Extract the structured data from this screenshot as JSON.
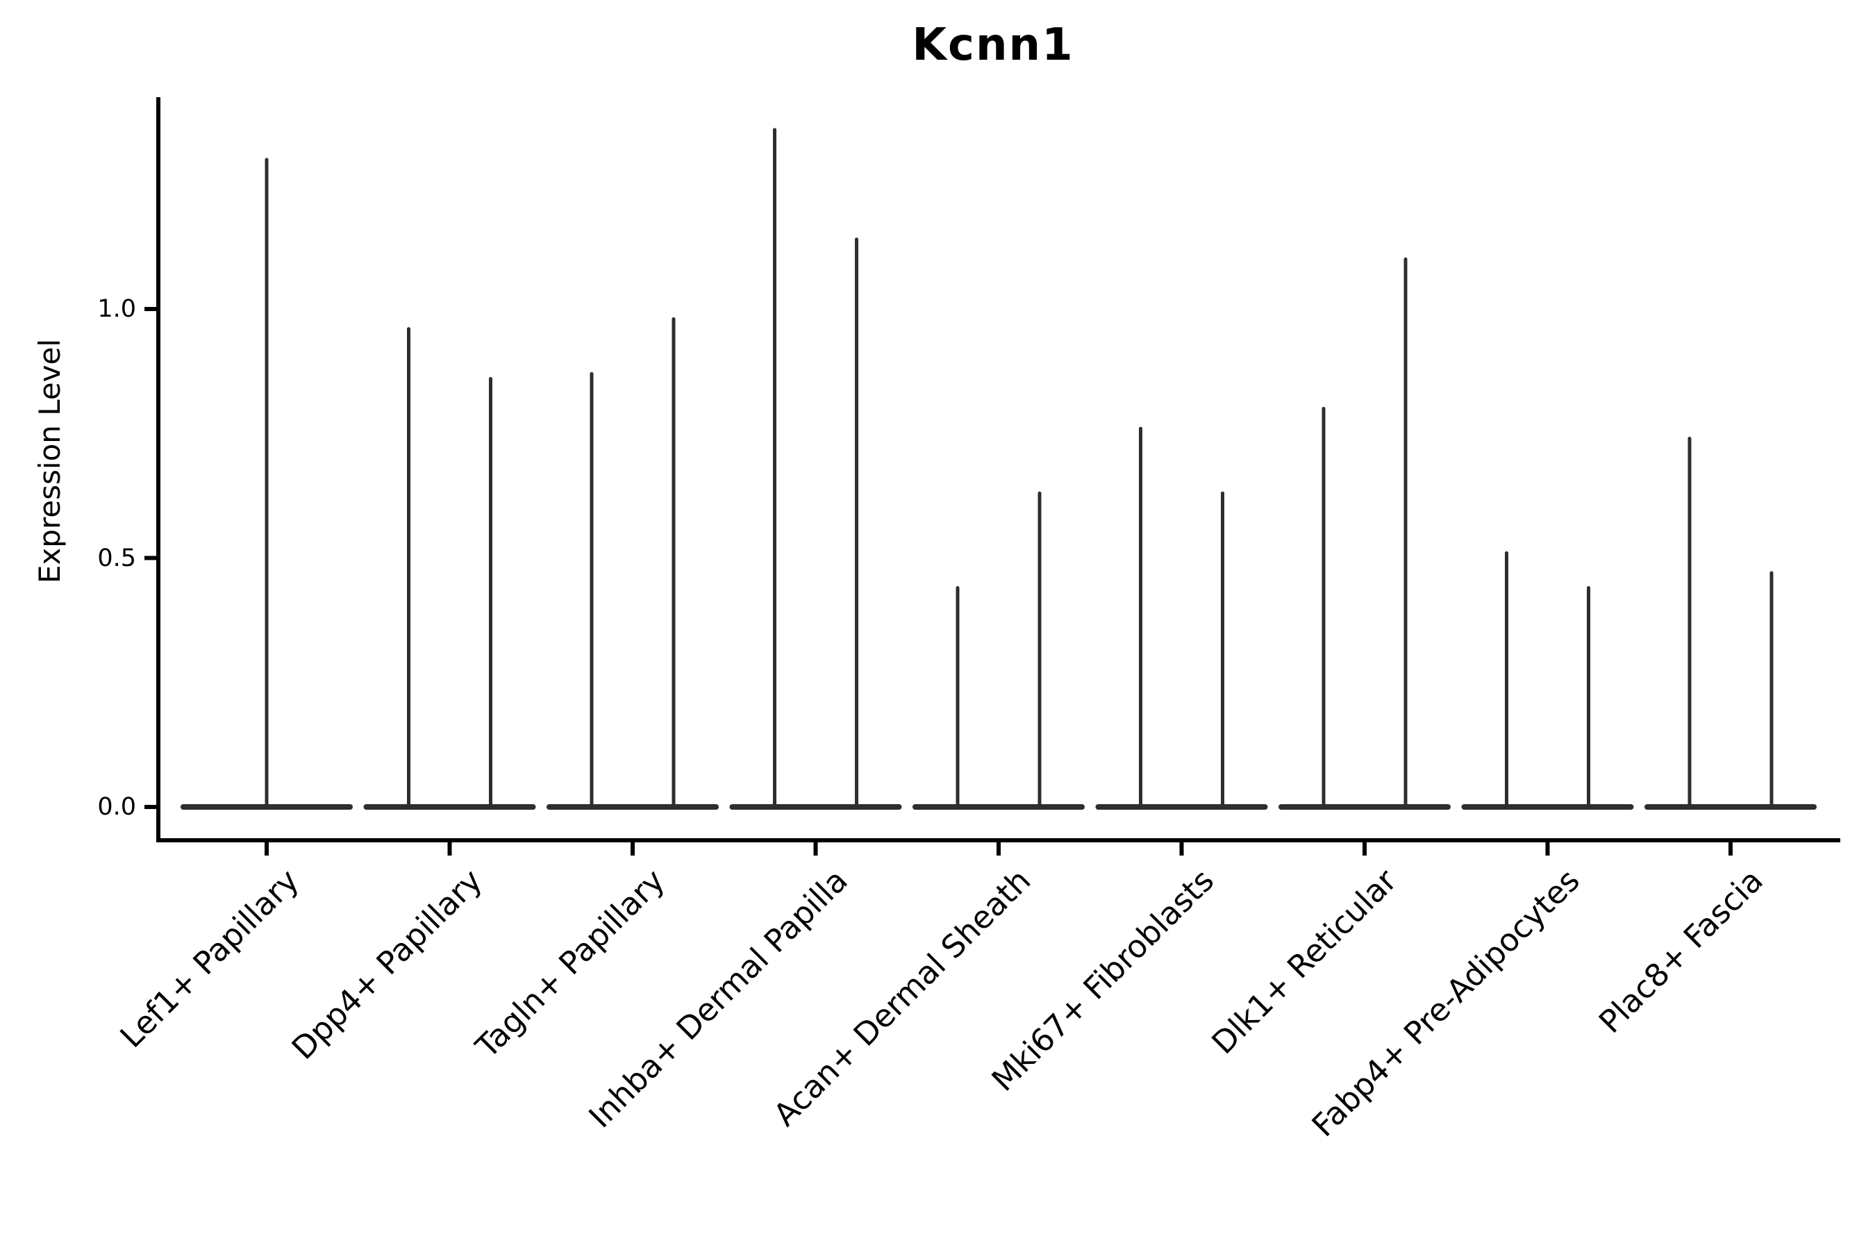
{
  "chart_data": {
    "type": "violin",
    "title": "Kcnn1",
    "ylabel": "Expression Level",
    "xlabel": "",
    "ytick_labels": [
      "0.0",
      "0.5",
      "1.0"
    ],
    "ytick_values": [
      0.0,
      0.5,
      1.0
    ],
    "ylim": [
      -0.07,
      1.42
    ],
    "grid": false,
    "legend": "none",
    "categories": [
      "Lef1+ Papillary",
      "Dpp4+ Papillary",
      "Tagln+ Papillary",
      "Inhba+ Dermal Papilla",
      "Acan+ Dermal Sheath",
      "Mki67+ Fibroblasts",
      "Dlk1+ Reticular",
      "Fabp4+ Pre-Adipocytes",
      "Plac8+ Fascia"
    ],
    "violins": [
      {
        "category": "Lef1+ Papillary",
        "baseline_value": 0.0,
        "spike_maxima": [
          1.3
        ]
      },
      {
        "category": "Dpp4+ Papillary",
        "baseline_value": 0.0,
        "spike_maxima": [
          0.96,
          0.86
        ]
      },
      {
        "category": "Tagln+ Papillary",
        "baseline_value": 0.0,
        "spike_maxima": [
          0.87,
          0.98
        ]
      },
      {
        "category": "Inhba+ Dermal Papilla",
        "baseline_value": 0.0,
        "spike_maxima": [
          1.36,
          1.14
        ]
      },
      {
        "category": "Acan+ Dermal Sheath",
        "baseline_value": 0.0,
        "spike_maxima": [
          0.44,
          0.63
        ]
      },
      {
        "category": "Mki67+ Fibroblasts",
        "baseline_value": 0.0,
        "spike_maxima": [
          0.76,
          0.63
        ]
      },
      {
        "category": "Dlk1+ Reticular",
        "baseline_value": 0.0,
        "spike_maxima": [
          0.8,
          1.1
        ]
      },
      {
        "category": "Fabp4+ Pre-Adipocytes",
        "baseline_value": 0.0,
        "spike_maxima": [
          0.51,
          0.44
        ]
      },
      {
        "category": "Plac8+ Fascia",
        "baseline_value": 0.0,
        "spike_maxima": [
          0.74,
          0.47
        ]
      }
    ],
    "colors": {
      "background": "#ffffff",
      "axis": "#000000",
      "text": "#000000",
      "violin_line": "#2e2e2e"
    }
  }
}
